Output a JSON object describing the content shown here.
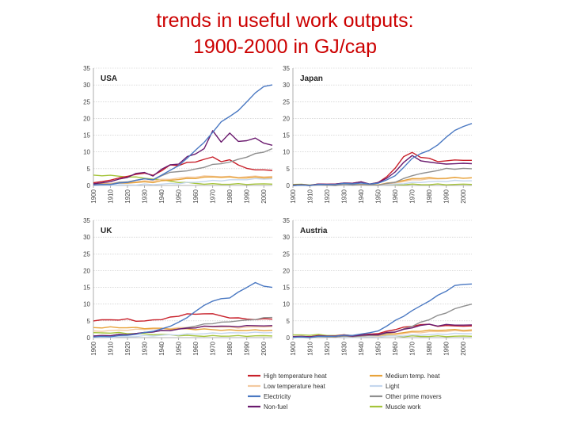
{
  "title": {
    "line1": "trends in useful work outputs:",
    "line2": "1900-2000 in GJ/cap"
  },
  "colors": {
    "title": "#cc0000",
    "high_temperature_heat": "#c8202a",
    "medium_temp_heat": "#e8a33a",
    "low_temperature_heat": "#f3c9a0",
    "light": "#c5d7ee",
    "electricity": "#4a78c2",
    "other_prime_movers": "#8f8f8f",
    "non_fuel": "#6a1a6e",
    "muscle_work": "#a5c43a"
  },
  "chart_data": {
    "type": "line",
    "ylim": [
      0,
      35
    ],
    "y_ticks": [
      "0",
      "5",
      "10",
      "15",
      "20",
      "25",
      "30",
      "35"
    ],
    "x_ticks": [
      "1900",
      "1910",
      "1920",
      "1930",
      "1940",
      "1950",
      "1960",
      "1970",
      "1980",
      "1990",
      "2000"
    ],
    "x": [
      1900,
      1905,
      1910,
      1915,
      1920,
      1925,
      1930,
      1935,
      1940,
      1945,
      1950,
      1955,
      1960,
      1965,
      1970,
      1975,
      1980,
      1985,
      1990,
      1995,
      2000,
      2005
    ],
    "legend": [
      {
        "key": "high_temperature_heat",
        "label": "High temperature heat"
      },
      {
        "key": "medium_temp_heat",
        "label": "Medium temp. heat"
      },
      {
        "key": "low_temperature_heat",
        "label": "Low temperature heat"
      },
      {
        "key": "light",
        "label": "Light"
      },
      {
        "key": "electricity",
        "label": "Electricity"
      },
      {
        "key": "other_prime_movers",
        "label": "Other prime movers"
      },
      {
        "key": "non_fuel",
        "label": "Non-fuel"
      },
      {
        "key": "muscle_work",
        "label": "Muscle work"
      }
    ],
    "panels": [
      {
        "name": "USA",
        "series": [
          {
            "key": "muscle_work",
            "values": [
              3.1,
              3.0,
              2.9,
              2.8,
              2.6,
              2.4,
              2.2,
              2.0,
              1.6,
              1.3,
              1.0,
              0.8,
              0.6,
              0.5,
              0.4,
              0.4,
              0.4,
              0.4,
              0.4,
              0.4,
              0.4,
              0.4
            ]
          },
          {
            "key": "light",
            "values": [
              0.05,
              0.05,
              0.1,
              0.1,
              0.15,
              0.2,
              0.3,
              0.3,
              0.4,
              0.5,
              0.6,
              0.8,
              1.0,
              1.2,
              1.4,
              1.5,
              1.6,
              1.7,
              1.8,
              1.9,
              2.0,
              2.0
            ]
          },
          {
            "key": "low_temperature_heat",
            "values": [
              0.5,
              0.6,
              0.7,
              0.8,
              1.0,
              1.1,
              1.3,
              1.4,
              1.7,
              1.9,
              2.2,
              2.4,
              2.6,
              2.7,
              2.8,
              2.7,
              2.6,
              2.5,
              2.6,
              2.7,
              2.7,
              2.7
            ]
          },
          {
            "key": "medium_temp_heat",
            "values": [
              0.3,
              0.4,
              0.5,
              0.6,
              0.8,
              0.9,
              1.0,
              1.0,
              1.3,
              1.6,
              1.8,
              2.0,
              2.2,
              2.4,
              2.6,
              2.5,
              2.4,
              2.3,
              2.3,
              2.4,
              2.4,
              2.4
            ]
          },
          {
            "key": "high_temperature_heat",
            "values": [
              0.8,
              1.2,
              1.6,
              2.2,
              2.8,
              3.2,
              3.8,
              3.0,
              4.5,
              6.0,
              6.0,
              6.8,
              7.0,
              7.8,
              8.5,
              7.2,
              7.6,
              6.0,
              5.0,
              4.8,
              4.6,
              4.5
            ]
          },
          {
            "key": "other_prime_movers",
            "values": [
              0.2,
              0.3,
              0.5,
              0.8,
              1.2,
              1.5,
              2.0,
              1.8,
              2.8,
              4.0,
              4.0,
              4.5,
              4.8,
              5.5,
              6.2,
              6.5,
              7.0,
              7.8,
              8.5,
              9.5,
              10.0,
              11.0
            ]
          },
          {
            "key": "non_fuel",
            "values": [
              0.5,
              0.8,
              1.2,
              1.8,
              2.5,
              3.5,
              4.0,
              2.8,
              5.0,
              6.0,
              6.5,
              8.5,
              9.5,
              11.0,
              16.5,
              13.0,
              15.5,
              13.0,
              13.5,
              14.0,
              12.5,
              12.0
            ]
          },
          {
            "key": "electricity",
            "values": [
              0.1,
              0.2,
              0.4,
              0.6,
              1.0,
              1.5,
              2.0,
              1.8,
              3.0,
              4.5,
              6.0,
              8.0,
              10.5,
              13.0,
              16.0,
              19.0,
              20.5,
              22.5,
              25.0,
              27.5,
              29.5,
              30.0
            ]
          }
        ]
      },
      {
        "name": "Japan",
        "series": [
          {
            "key": "muscle_work",
            "values": [
              0.3,
              0.3,
              0.3,
              0.3,
              0.3,
              0.3,
              0.3,
              0.3,
              0.3,
              0.3,
              0.3,
              0.3,
              0.3,
              0.3,
              0.3,
              0.3,
              0.3,
              0.3,
              0.3,
              0.3,
              0.3,
              0.3
            ]
          },
          {
            "key": "light",
            "values": [
              0.0,
              0.0,
              0.05,
              0.05,
              0.05,
              0.1,
              0.1,
              0.1,
              0.1,
              0.05,
              0.1,
              0.2,
              0.4,
              0.6,
              0.8,
              1.0,
              1.1,
              1.2,
              1.3,
              1.4,
              1.4,
              1.4
            ]
          },
          {
            "key": "low_temperature_heat",
            "values": [
              0.0,
              0.0,
              0.1,
              0.1,
              0.1,
              0.1,
              0.2,
              0.2,
              0.2,
              0.1,
              0.2,
              0.4,
              0.8,
              1.2,
              1.6,
              1.8,
              1.9,
              2.0,
              2.1,
              2.2,
              2.3,
              2.3
            ]
          },
          {
            "key": "medium_temp_heat",
            "values": [
              0.0,
              0.0,
              0.1,
              0.1,
              0.1,
              0.2,
              0.2,
              0.3,
              0.3,
              0.1,
              0.3,
              0.6,
              1.0,
              1.5,
              2.0,
              2.2,
              2.2,
              2.1,
              2.2,
              2.3,
              2.3,
              2.3
            ]
          },
          {
            "key": "high_temperature_heat",
            "values": [
              0.1,
              0.1,
              0.2,
              0.3,
              0.4,
              0.5,
              0.6,
              0.8,
              1.0,
              0.2,
              1.0,
              2.5,
              5.0,
              8.5,
              10.0,
              8.5,
              8.0,
              7.0,
              7.5,
              7.5,
              7.5,
              7.5
            ]
          },
          {
            "key": "other_prime_movers",
            "values": [
              0.0,
              0.0,
              0.0,
              0.1,
              0.1,
              0.1,
              0.2,
              0.2,
              0.3,
              0.1,
              0.2,
              0.5,
              1.0,
              2.0,
              3.0,
              3.5,
              4.0,
              4.5,
              5.0,
              5.0,
              5.0,
              5.0
            ]
          },
          {
            "key": "non_fuel",
            "values": [
              0.1,
              0.1,
              0.2,
              0.3,
              0.4,
              0.5,
              0.6,
              0.8,
              1.0,
              0.3,
              1.0,
              2.0,
              4.0,
              7.0,
              9.0,
              7.5,
              7.0,
              6.5,
              6.5,
              6.5,
              6.5,
              6.5
            ]
          },
          {
            "key": "electricity",
            "values": [
              0.0,
              0.0,
              0.1,
              0.2,
              0.3,
              0.4,
              0.5,
              0.6,
              0.7,
              0.3,
              0.8,
              1.5,
              3.0,
              5.5,
              8.0,
              9.5,
              10.5,
              12.0,
              14.5,
              16.5,
              17.5,
              18.5
            ]
          }
        ]
      },
      {
        "name": "UK",
        "series": [
          {
            "key": "muscle_work",
            "values": [
              1.5,
              1.5,
              1.4,
              1.4,
              1.3,
              1.2,
              1.1,
              1.0,
              0.9,
              0.8,
              0.7,
              0.6,
              0.5,
              0.5,
              0.5,
              0.5,
              0.5,
              0.5,
              0.5,
              0.5,
              0.5,
              0.5
            ]
          },
          {
            "key": "light",
            "values": [
              0.1,
              0.1,
              0.2,
              0.2,
              0.3,
              0.4,
              0.5,
              0.6,
              0.7,
              0.8,
              0.9,
              1.0,
              1.1,
              1.2,
              1.3,
              1.4,
              1.4,
              1.4,
              1.5,
              1.5,
              1.5,
              1.5
            ]
          },
          {
            "key": "low_temperature_heat",
            "values": [
              2.0,
              2.0,
              2.1,
              2.2,
              2.3,
              2.4,
              2.5,
              2.6,
              2.7,
              2.8,
              2.9,
              3.0,
              3.1,
              3.2,
              3.3,
              3.2,
              3.1,
              3.0,
              3.1,
              3.2,
              3.3,
              3.3
            ]
          },
          {
            "key": "medium_temp_heat",
            "values": [
              3.0,
              3.0,
              3.1,
              3.0,
              3.0,
              2.9,
              2.8,
              2.8,
              2.7,
              2.6,
              2.6,
              2.6,
              2.5,
              2.5,
              2.4,
              2.3,
              2.2,
              2.2,
              2.2,
              2.2,
              2.2,
              2.2
            ]
          },
          {
            "key": "high_temperature_heat",
            "values": [
              5.0,
              5.2,
              5.4,
              5.3,
              5.5,
              5.0,
              5.0,
              5.2,
              5.5,
              6.0,
              6.5,
              7.0,
              7.0,
              7.2,
              7.0,
              6.5,
              6.0,
              5.8,
              5.5,
              5.5,
              5.5,
              5.5
            ]
          },
          {
            "key": "other_prime_movers",
            "values": [
              0.5,
              0.6,
              0.7,
              0.8,
              1.0,
              1.2,
              1.5,
              1.8,
              2.0,
              2.2,
              2.5,
              3.0,
              3.5,
              4.0,
              4.3,
              4.5,
              4.8,
              5.0,
              5.2,
              5.5,
              5.8,
              6.0
            ]
          },
          {
            "key": "non_fuel",
            "values": [
              0.5,
              0.6,
              0.7,
              0.8,
              1.0,
              1.2,
              1.5,
              1.8,
              2.0,
              2.2,
              2.5,
              2.8,
              3.0,
              3.3,
              3.5,
              3.4,
              3.3,
              3.4,
              3.5,
              3.6,
              3.6,
              3.6
            ]
          },
          {
            "key": "electricity",
            "values": [
              0.2,
              0.3,
              0.4,
              0.5,
              0.8,
              1.0,
              1.5,
              2.0,
              2.5,
              3.5,
              4.5,
              6.0,
              8.0,
              9.5,
              11.0,
              11.5,
              12.0,
              13.5,
              15.0,
              16.5,
              15.5,
              15.0
            ]
          }
        ]
      },
      {
        "name": "Austria",
        "series": [
          {
            "key": "muscle_work",
            "values": [
              0.8,
              0.8,
              0.8,
              0.8,
              0.7,
              0.7,
              0.7,
              0.7,
              0.6,
              0.6,
              0.6,
              0.5,
              0.5,
              0.4,
              0.4,
              0.4,
              0.4,
              0.4,
              0.4,
              0.4,
              0.4,
              0.4
            ]
          },
          {
            "key": "light",
            "values": [
              0.0,
              0.0,
              0.0,
              0.1,
              0.1,
              0.1,
              0.1,
              0.1,
              0.2,
              0.2,
              0.3,
              0.4,
              0.5,
              0.6,
              0.7,
              0.8,
              0.9,
              1.0,
              1.1,
              1.2,
              1.2,
              1.2
            ]
          },
          {
            "key": "low_temperature_heat",
            "values": [
              0.1,
              0.1,
              0.1,
              0.2,
              0.2,
              0.2,
              0.3,
              0.3,
              0.4,
              0.5,
              0.6,
              0.8,
              1.0,
              1.2,
              1.5,
              1.6,
              1.7,
              1.8,
              1.9,
              2.0,
              2.0,
              2.0
            ]
          },
          {
            "key": "medium_temp_heat",
            "values": [
              0.2,
              0.2,
              0.2,
              0.3,
              0.3,
              0.3,
              0.4,
              0.4,
              0.5,
              0.6,
              0.8,
              1.0,
              1.2,
              1.5,
              1.8,
              2.0,
              2.1,
              2.2,
              2.3,
              2.3,
              2.3,
              2.3
            ]
          },
          {
            "key": "high_temperature_heat",
            "values": [
              0.3,
              0.3,
              0.4,
              0.5,
              0.5,
              0.6,
              0.7,
              0.7,
              0.8,
              1.0,
              1.3,
              1.8,
              2.5,
              3.0,
              3.5,
              3.8,
              4.0,
              3.5,
              3.5,
              3.5,
              3.5,
              3.5
            ]
          },
          {
            "key": "other_prime_movers",
            "values": [
              0.1,
              0.1,
              0.1,
              0.2,
              0.2,
              0.3,
              0.3,
              0.4,
              0.5,
              0.6,
              0.8,
              1.2,
              1.8,
              2.5,
              3.5,
              4.5,
              5.5,
              6.5,
              7.5,
              8.5,
              9.5,
              10.0
            ]
          },
          {
            "key": "non_fuel",
            "values": [
              0.3,
              0.3,
              0.4,
              0.4,
              0.5,
              0.5,
              0.6,
              0.6,
              0.7,
              0.8,
              1.0,
              1.4,
              1.8,
              2.4,
              3.0,
              3.6,
              4.0,
              3.6,
              3.8,
              3.8,
              3.8,
              3.8
            ]
          },
          {
            "key": "electricity",
            "values": [
              0.1,
              0.1,
              0.2,
              0.3,
              0.4,
              0.5,
              0.6,
              0.8,
              1.0,
              1.5,
              2.0,
              3.5,
              5.0,
              6.5,
              8.0,
              9.5,
              11.0,
              12.5,
              14.0,
              15.5,
              16.0,
              16.0
            ]
          }
        ]
      }
    ]
  }
}
